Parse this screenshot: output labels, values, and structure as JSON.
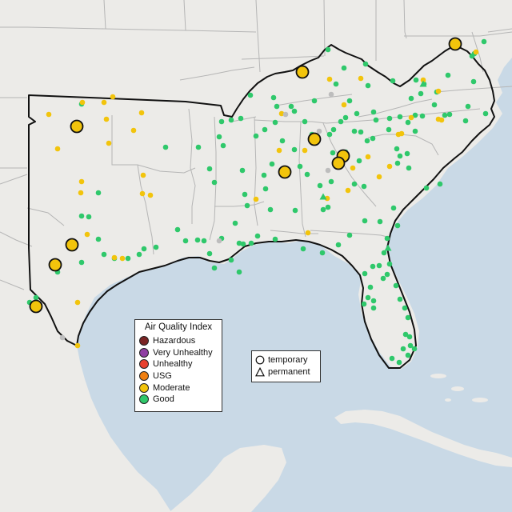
{
  "colors": {
    "ocean": "#c9d9e6",
    "land": "#ecebe8",
    "land_outside": "#efeeec",
    "state_border": "#b5b5b5",
    "region_border": "#111111",
    "good": "#2fc86b",
    "moderate": "#f2c40c",
    "usg": "#f07f10",
    "unhealthy": "#e8402d",
    "very_unhealthy": "#8f3fa3",
    "hazardous": "#7a2424",
    "unknown": "#bdbdbd",
    "permanent_large": "#f2c40c"
  },
  "legend_aqi": {
    "title": "Air Quality Index",
    "items": [
      {
        "label": "Hazardous",
        "color": "#7a2424"
      },
      {
        "label": "Very Unhealthy",
        "color": "#8f3fa3"
      },
      {
        "label": "Unhealthy",
        "color": "#e8402d"
      },
      {
        "label": "USG",
        "color": "#f07f10"
      },
      {
        "label": "Moderate",
        "color": "#f2c40c"
      },
      {
        "label": "Good",
        "color": "#2fc86b"
      }
    ]
  },
  "legend_type": {
    "items": [
      {
        "label": "temporary",
        "icon": "circle-outline-icon"
      },
      {
        "label": "permanent",
        "icon": "triangle-outline-icon"
      }
    ]
  }
}
